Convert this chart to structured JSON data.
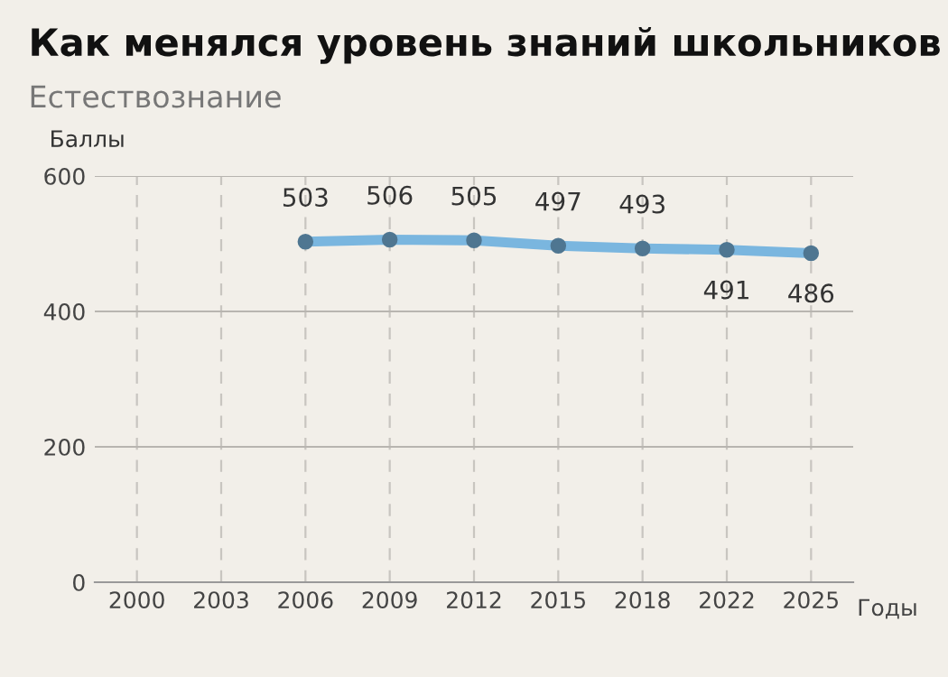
{
  "chart_data": {
    "type": "line",
    "title": "Как менялся уровень знаний школьников",
    "subtitle": "Естествознание",
    "ylabel": "Баллы",
    "xlabel": "Годы",
    "categories": [
      "2000",
      "2003",
      "2006",
      "2009",
      "2012",
      "2015",
      "2018",
      "2022",
      "2025"
    ],
    "series": [
      {
        "color": "#7ab6df",
        "values": [
          null,
          null,
          503,
          506,
          505,
          497,
          493,
          491,
          486
        ]
      }
    ],
    "ylim": [
      0,
      600
    ],
    "yticks": [
      0,
      200,
      400,
      600
    ],
    "grid": true,
    "marker": "circle",
    "data_labels": true
  }
}
